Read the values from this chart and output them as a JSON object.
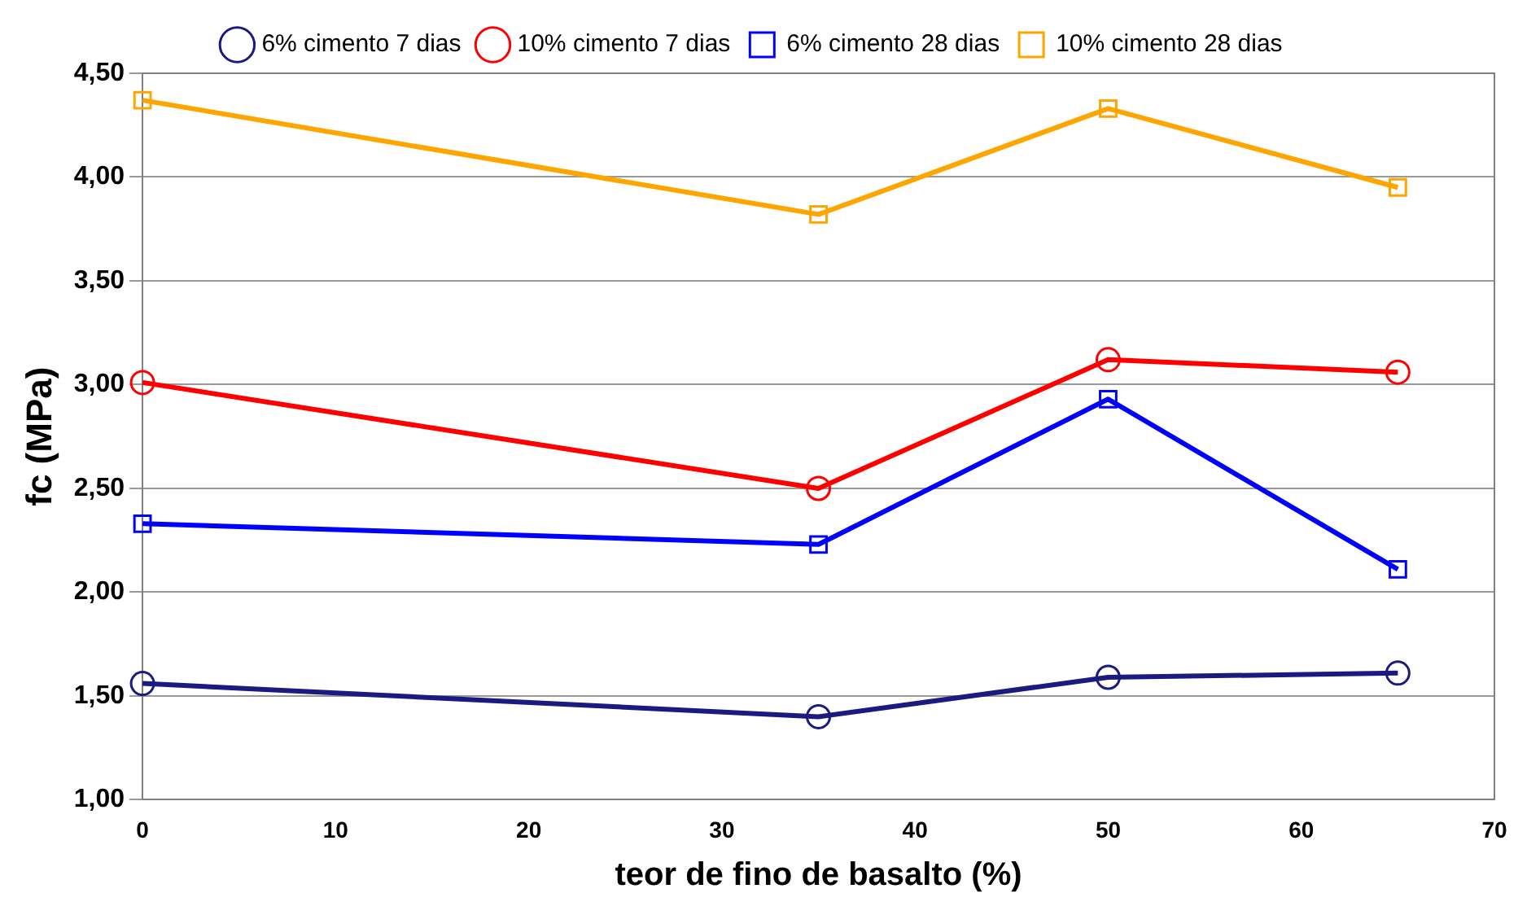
{
  "chart_data": {
    "type": "line",
    "xlabel": "teor de fino de basalto (%)",
    "ylabel": "fc (MPa)",
    "x": [
      0,
      35,
      50,
      65
    ],
    "series": [
      {
        "name": "6% cimento 7 dias",
        "color": "#1a1a80",
        "marker": "circle",
        "values": [
          1.56,
          1.4,
          1.59,
          1.61
        ]
      },
      {
        "name": "10% cimento 7 dias",
        "color": "#ff0000",
        "marker": "circle",
        "values": [
          3.01,
          2.5,
          3.12,
          3.06
        ]
      },
      {
        "name": "6% cimento 28 dias",
        "color": "#0000ff",
        "marker": "square",
        "values": [
          2.33,
          2.23,
          2.93,
          2.11
        ]
      },
      {
        "name": "10% cimento 28 dias",
        "color": "#ffa500",
        "marker": "square",
        "values": [
          4.37,
          3.82,
          4.33,
          3.95
        ]
      }
    ],
    "xlim": [
      0,
      70
    ],
    "xticks": [
      0,
      10,
      20,
      30,
      40,
      50,
      60,
      70
    ],
    "ylim": [
      1,
      4.5
    ],
    "yticks": [
      {
        "value": 1,
        "label": "1,00"
      },
      {
        "value": 1.5,
        "label": "1,50"
      },
      {
        "value": 2,
        "label": "2,00"
      },
      {
        "value": 2.5,
        "label": "2,50"
      },
      {
        "value": 3,
        "label": "3,00"
      },
      {
        "value": 3.5,
        "label": "3,50"
      },
      {
        "value": 4,
        "label": "4,00"
      },
      {
        "value": 4.5,
        "label": "4,50"
      }
    ],
    "grid": "y",
    "legend": "top",
    "line_style": "solid"
  }
}
